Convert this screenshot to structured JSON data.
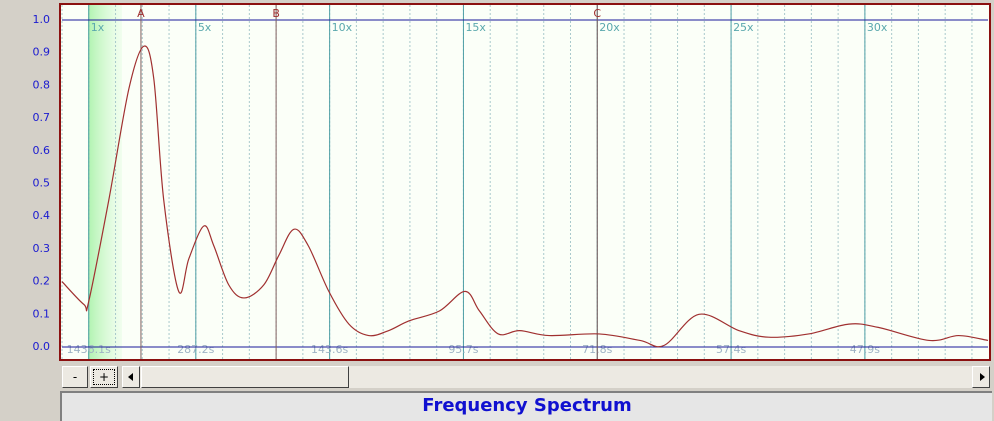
{
  "chart_data": {
    "type": "line",
    "title": "Frequency Spectrum",
    "x": [
      0,
      0.82,
      1.0,
      1.75,
      2.5,
      3.06,
      3.43,
      3.8,
      4.36,
      4.74,
      5.3,
      5.67,
      6.23,
      6.8,
      7.54,
      8.1,
      8.66,
      9.2,
      9.97,
      10.72,
      11.46,
      12.2,
      12.97,
      14.1,
      15.06,
      15.6,
      16.3,
      17.1,
      18.2,
      20.07,
      21.6,
      22.5,
      23.8,
      25.3,
      26.4,
      27.9,
      29.4,
      30.5,
      32.4,
      33.5,
      34.6
    ],
    "series": [
      {
        "color": "#a03030",
        "values": [
          0.2,
          0.13,
          0.14,
          0.45,
          0.79,
          0.92,
          0.82,
          0.45,
          0.17,
          0.27,
          0.37,
          0.31,
          0.19,
          0.15,
          0.19,
          0.28,
          0.36,
          0.31,
          0.17,
          0.07,
          0.035,
          0.05,
          0.08,
          0.11,
          0.17,
          0.11,
          0.04,
          0.05,
          0.035,
          0.04,
          0.02,
          0.005,
          0.1,
          0.05,
          0.03,
          0.04,
          0.07,
          0.06,
          0.02,
          0.035,
          0.02
        ]
      }
    ],
    "xlim": [
      0,
      34.6
    ],
    "ylim": [
      0,
      1
    ],
    "yticks": [
      {
        "value": 0,
        "label": "0.0"
      },
      0.1,
      0.2,
      0.3,
      0.4,
      0.5,
      0.6,
      0.7,
      0.8,
      0.9,
      {
        "value": 1,
        "label": "1.0"
      }
    ],
    "xticks": [
      {
        "value": 1,
        "label": "1x"
      },
      {
        "value": 5,
        "label": "5x"
      },
      {
        "value": 10,
        "label": "10x"
      },
      {
        "value": 15,
        "label": "15x"
      },
      {
        "value": 20,
        "label": "20x"
      },
      {
        "value": 25,
        "label": "25x"
      },
      {
        "value": 30,
        "label": "30x"
      }
    ],
    "x2ticks": [
      {
        "value": 1,
        "label": "1436.1s"
      },
      {
        "value": 5,
        "label": "287.2s"
      },
      {
        "value": 10,
        "label": "143.6s"
      },
      {
        "value": 15,
        "label": "95.7s"
      },
      {
        "value": 20,
        "label": "71.8s"
      },
      {
        "value": 25,
        "label": "57.4s"
      },
      {
        "value": 30,
        "label": "47.9s"
      }
    ],
    "markers": [
      {
        "label": "A",
        "x": 2.95
      },
      {
        "label": "B",
        "x": 8
      },
      {
        "label": "C",
        "x": 20
      }
    ]
  },
  "ui": {
    "buttons": [
      "-",
      "+"
    ]
  }
}
